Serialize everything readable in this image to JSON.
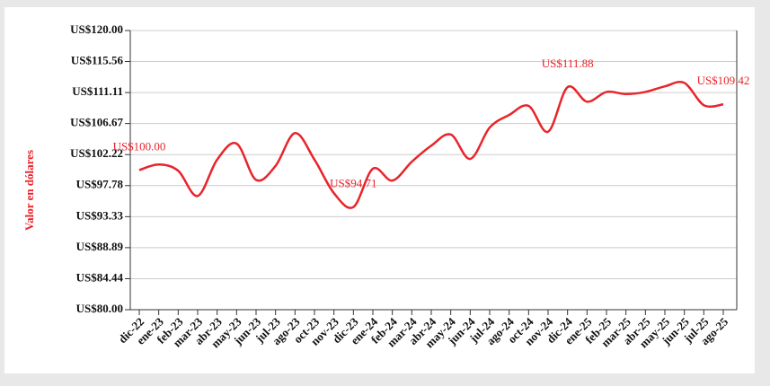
{
  "chart_data": {
    "type": "line",
    "y_label": "Valor en dólares",
    "categories": [
      "dic-22",
      "ene-23",
      "feb-23",
      "mar-23",
      "abr-23",
      "may-23",
      "jun-23",
      "jul-23",
      "ago-23",
      "oct-23",
      "nov-23",
      "dic-23",
      "ene-24",
      "feb-24",
      "mar-24",
      "abr-24",
      "may-24",
      "jun-24",
      "jul-24",
      "ago-24",
      "oct-24",
      "nov-24",
      "dic-24",
      "ene-25",
      "feb-25",
      "mar-25",
      "abr-25",
      "may-25",
      "jun-25",
      "jul-25",
      "ago-25"
    ],
    "series": [
      {
        "name": "Valor",
        "color": "#e8242a",
        "values": [
          100.0,
          100.8,
          99.9,
          96.3,
          101.5,
          103.8,
          98.6,
          100.6,
          105.3,
          101.5,
          96.7,
          94.71,
          100.2,
          98.5,
          101.2,
          103.5,
          105.1,
          101.6,
          106.1,
          107.9,
          109.2,
          105.5,
          111.88,
          109.8,
          111.2,
          110.9,
          111.2,
          112.0,
          112.5,
          109.3,
          109.42
        ],
        "value_labels": [
          "US$100.00",
          null,
          null,
          null,
          null,
          null,
          null,
          null,
          null,
          null,
          null,
          "US$94.71",
          null,
          null,
          null,
          null,
          null,
          null,
          null,
          null,
          null,
          null,
          "US$111.88",
          null,
          null,
          null,
          null,
          null,
          null,
          null,
          "US$109.42"
        ]
      }
    ],
    "ylim": [
      80,
      120
    ],
    "yticks": [
      {
        "value": 80,
        "label": "US$80.00"
      },
      {
        "value": 84.44,
        "label": "US$84.44"
      },
      {
        "value": 88.89,
        "label": "US$88.89"
      },
      {
        "value": 93.33,
        "label": "US$93.33"
      },
      {
        "value": 97.78,
        "label": "US$97.78"
      },
      {
        "value": 102.22,
        "label": "US$102.22"
      },
      {
        "value": 106.67,
        "label": "US$106.67"
      },
      {
        "value": 111.11,
        "label": "US$111.11"
      },
      {
        "value": 115.56,
        "label": "US$115.56"
      },
      {
        "value": 120,
        "label": "US$120.00"
      }
    ],
    "grid": true
  }
}
